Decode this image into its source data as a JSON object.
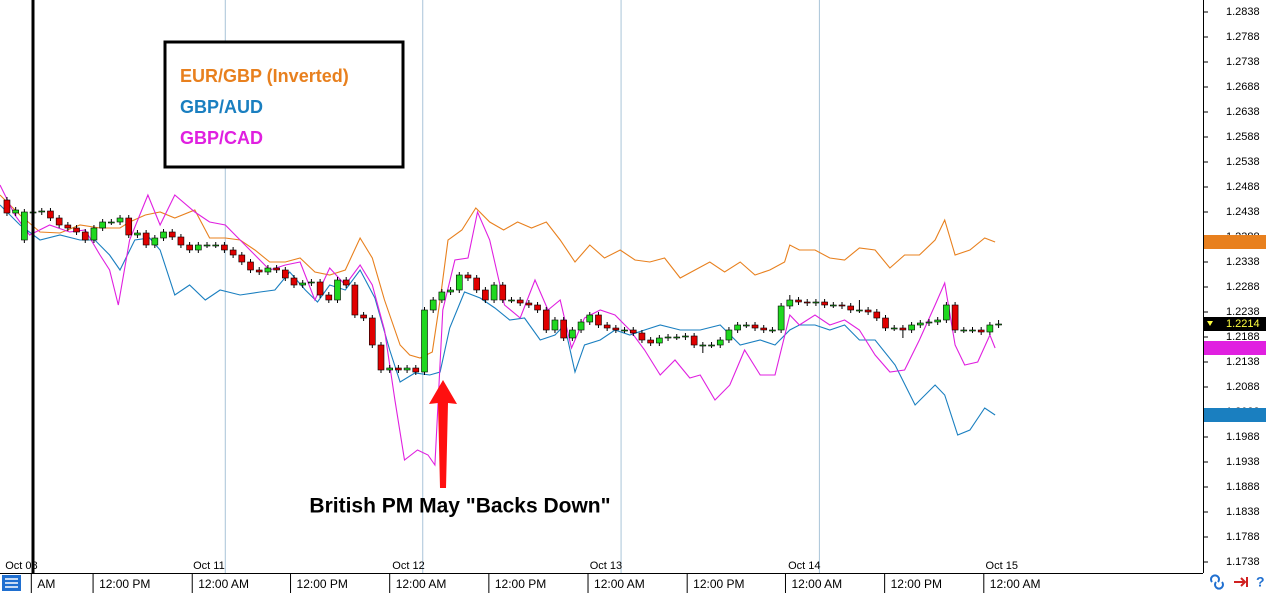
{
  "chart_data": {
    "type": "candlestick",
    "up_color": "#1fd81f",
    "down_color": "#e00000",
    "ohlc": [
      [
        1.2462,
        1.2468,
        1.243,
        1.2436
      ],
      [
        1.2436,
        1.2448,
        1.243,
        1.2442
      ],
      [
        1.2382,
        1.2444,
        1.2376,
        1.2438
      ],
      [
        1.2438,
        1.2444,
        1.2432,
        1.2438
      ],
      [
        1.2438,
        1.2446,
        1.2432,
        1.244
      ],
      [
        1.244,
        1.2446,
        1.242,
        1.2426
      ],
      [
        1.2426,
        1.2432,
        1.2406,
        1.2412
      ],
      [
        1.2412,
        1.2418,
        1.24,
        1.2406
      ],
      [
        1.2406,
        1.2412,
        1.2392,
        1.2398
      ],
      [
        1.2398,
        1.2404,
        1.2376,
        1.2382
      ],
      [
        1.2382,
        1.2412,
        1.2376,
        1.2406
      ],
      [
        1.2406,
        1.2424,
        1.24,
        1.2418
      ],
      [
        1.2418,
        1.2424,
        1.2412,
        1.2418
      ],
      [
        1.2418,
        1.2432,
        1.2412,
        1.2426
      ],
      [
        1.2426,
        1.2432,
        1.2386,
        1.2392
      ],
      [
        1.2392,
        1.2402,
        1.2386,
        1.2396
      ],
      [
        1.2396,
        1.2402,
        1.2366,
        1.2372
      ],
      [
        1.2372,
        1.2392,
        1.2366,
        1.2386
      ],
      [
        1.2386,
        1.2404,
        1.238,
        1.2398
      ],
      [
        1.2398,
        1.2404,
        1.2382,
        1.2388
      ],
      [
        1.2388,
        1.2394,
        1.2366,
        1.2372
      ],
      [
        1.2372,
        1.2378,
        1.2356,
        1.2362
      ],
      [
        1.2362,
        1.2378,
        1.2356,
        1.2372
      ],
      [
        1.2372,
        1.2378,
        1.2366,
        1.2372
      ],
      [
        1.2372,
        1.2378,
        1.2366,
        1.2372
      ],
      [
        1.2372,
        1.2378,
        1.2356,
        1.2362
      ],
      [
        1.2362,
        1.2368,
        1.2346,
        1.2352
      ],
      [
        1.2352,
        1.2358,
        1.2332,
        1.2338
      ],
      [
        1.2338,
        1.2344,
        1.2316,
        1.2322
      ],
      [
        1.2322,
        1.2328,
        1.2312,
        1.2318
      ],
      [
        1.2318,
        1.2332,
        1.2312,
        1.2326
      ],
      [
        1.2326,
        1.2332,
        1.2316,
        1.2322
      ],
      [
        1.2322,
        1.2328,
        1.23,
        1.2306
      ],
      [
        1.2306,
        1.2312,
        1.2286,
        1.2292
      ],
      [
        1.2292,
        1.2302,
        1.2286,
        1.2296
      ],
      [
        1.2296,
        1.2304,
        1.229,
        1.2298
      ],
      [
        1.2298,
        1.2304,
        1.2266,
        1.2272
      ],
      [
        1.2272,
        1.2278,
        1.2256,
        1.2262
      ],
      [
        1.2262,
        1.2308,
        1.2256,
        1.2302
      ],
      [
        1.2302,
        1.2308,
        1.2286,
        1.2292
      ],
      [
        1.2292,
        1.2298,
        1.2226,
        1.2232
      ],
      [
        1.2232,
        1.2238,
        1.222,
        1.2226
      ],
      [
        1.2226,
        1.2232,
        1.2166,
        1.2172
      ],
      [
        1.2172,
        1.2178,
        1.2116,
        1.2122
      ],
      [
        1.2122,
        1.2132,
        1.2116,
        1.2126
      ],
      [
        1.2126,
        1.2132,
        1.2116,
        1.2122
      ],
      [
        1.2122,
        1.2132,
        1.2116,
        1.2126
      ],
      [
        1.2126,
        1.2132,
        1.2112,
        1.2118
      ],
      [
        1.2118,
        1.2248,
        1.2112,
        1.2242
      ],
      [
        1.2242,
        1.2268,
        1.2236,
        1.2262
      ],
      [
        1.2262,
        1.2284,
        1.2256,
        1.2278
      ],
      [
        1.2278,
        1.2288,
        1.2272,
        1.2282
      ],
      [
        1.2282,
        1.2318,
        1.2276,
        1.2312
      ],
      [
        1.2312,
        1.2318,
        1.23,
        1.2306
      ],
      [
        1.2306,
        1.2312,
        1.2276,
        1.2282
      ],
      [
        1.2282,
        1.2288,
        1.2256,
        1.2262
      ],
      [
        1.2262,
        1.2298,
        1.2256,
        1.2292
      ],
      [
        1.2292,
        1.2298,
        1.2256,
        1.2262
      ],
      [
        1.2262,
        1.2268,
        1.2256,
        1.2262
      ],
      [
        1.2262,
        1.2268,
        1.225,
        1.2256
      ],
      [
        1.2256,
        1.2262,
        1.2246,
        1.2252
      ],
      [
        1.2252,
        1.2258,
        1.2236,
        1.2242
      ],
      [
        1.2242,
        1.2248,
        1.2196,
        1.2202
      ],
      [
        1.2202,
        1.2228,
        1.2196,
        1.2222
      ],
      [
        1.2222,
        1.2228,
        1.218,
        1.2186
      ],
      [
        1.2186,
        1.2208,
        1.218,
        1.2202
      ],
      [
        1.2202,
        1.2224,
        1.2196,
        1.2218
      ],
      [
        1.2218,
        1.2238,
        1.2212,
        1.2232
      ],
      [
        1.2232,
        1.2238,
        1.2206,
        1.2212
      ],
      [
        1.2212,
        1.2218,
        1.22,
        1.2206
      ],
      [
        1.2206,
        1.2212,
        1.2196,
        1.2202
      ],
      [
        1.2202,
        1.2208,
        1.2196,
        1.2202
      ],
      [
        1.2202,
        1.2208,
        1.219,
        1.2196
      ],
      [
        1.2196,
        1.2202,
        1.2176,
        1.2182
      ],
      [
        1.2182,
        1.2188,
        1.217,
        1.2176
      ],
      [
        1.2176,
        1.2192,
        1.217,
        1.2186
      ],
      [
        1.2186,
        1.2194,
        1.218,
        1.2188
      ],
      [
        1.2188,
        1.2194,
        1.2182,
        1.2188
      ],
      [
        1.2188,
        1.2196,
        1.2182,
        1.219
      ],
      [
        1.219,
        1.2196,
        1.2166,
        1.2172
      ],
      [
        1.2172,
        1.2178,
        1.2156,
        1.2172
      ],
      [
        1.2172,
        1.2178,
        1.2166,
        1.2172
      ],
      [
        1.2172,
        1.2188,
        1.2166,
        1.2182
      ],
      [
        1.2182,
        1.2208,
        1.2176,
        1.2202
      ],
      [
        1.2202,
        1.2218,
        1.2196,
        1.2212
      ],
      [
        1.2212,
        1.2218,
        1.2206,
        1.2212
      ],
      [
        1.2212,
        1.2218,
        1.22,
        1.2206
      ],
      [
        1.2206,
        1.2212,
        1.2196,
        1.2202
      ],
      [
        1.2202,
        1.2208,
        1.2196,
        1.2202
      ],
      [
        1.2202,
        1.2256,
        1.2196,
        1.225
      ],
      [
        1.225,
        1.2272,
        1.2244,
        1.2262
      ],
      [
        1.2262,
        1.2268,
        1.2252,
        1.2258
      ],
      [
        1.2258,
        1.2264,
        1.225,
        1.2256
      ],
      [
        1.2256,
        1.2264,
        1.225,
        1.2258
      ],
      [
        1.2258,
        1.2264,
        1.2246,
        1.2252
      ],
      [
        1.2252,
        1.2258,
        1.2246,
        1.2252
      ],
      [
        1.2252,
        1.2258,
        1.2244,
        1.225
      ],
      [
        1.225,
        1.2256,
        1.2236,
        1.2242
      ],
      [
        1.2242,
        1.2262,
        1.2236,
        1.2242
      ],
      [
        1.2242,
        1.2248,
        1.2232,
        1.2238
      ],
      [
        1.2238,
        1.2244,
        1.222,
        1.2226
      ],
      [
        1.2226,
        1.2232,
        1.22,
        1.2206
      ],
      [
        1.2206,
        1.2212,
        1.22,
        1.2206
      ],
      [
        1.2206,
        1.2212,
        1.2186,
        1.2202
      ],
      [
        1.2202,
        1.2218,
        1.2196,
        1.2212
      ],
      [
        1.2212,
        1.2222,
        1.2206,
        1.2216
      ],
      [
        1.2216,
        1.2224,
        1.221,
        1.2218
      ],
      [
        1.2218,
        1.2228,
        1.2212,
        1.2222
      ],
      [
        1.2222,
        1.2258,
        1.2216,
        1.2252
      ],
      [
        1.2252,
        1.2258,
        1.2196,
        1.2202
      ],
      [
        1.2202,
        1.2208,
        1.2196,
        1.2202
      ],
      [
        1.2202,
        1.2208,
        1.2196,
        1.2202
      ],
      [
        1.2202,
        1.2208,
        1.2192,
        1.2198
      ],
      [
        1.2198,
        1.2218,
        1.2192,
        1.2212
      ],
      [
        1.2212,
        1.2222,
        1.2206,
        1.2214
      ]
    ],
    "overlays": [
      {
        "name": "EUR/GBP (Inverted)",
        "color": "#e8801e",
        "x": [
          -0.8,
          1.5,
          3.8,
          6.1,
          8.4,
          10.7,
          13.0,
          14.1,
          15.9,
          17.6,
          19.3,
          21.6,
          23.3,
          25.1,
          26.8,
          28.5,
          30.2,
          32.0,
          33.7,
          35.4,
          37.1,
          38.9,
          40.6,
          42.0,
          43.4,
          45.2,
          46.3,
          47.5,
          48.9,
          49.8,
          50.7,
          52.3,
          53.9,
          55.5,
          57.1,
          58.7,
          60.3,
          62.0,
          63.6,
          65.3,
          67.0,
          68.7,
          70.5,
          72.2,
          73.9,
          75.6,
          77.4,
          79.1,
          80.8,
          82.5,
          84.3,
          86.0,
          87.7,
          89.4,
          90.0,
          91.1,
          92.9,
          94.6,
          96.3,
          98.0,
          99.8,
          101.5,
          103.2,
          104.9,
          106.7,
          107.8,
          109.0,
          110.7,
          112.4,
          113.6
        ],
        "values": [
          1.2472,
          1.2432,
          1.2398,
          1.2396,
          1.2412,
          1.2406,
          1.2406,
          1.2418,
          1.2432,
          1.2438,
          1.2426,
          1.2442,
          1.2386,
          1.2386,
          1.2382,
          1.2362,
          1.2338,
          1.2338,
          1.2346,
          1.2318,
          1.2312,
          1.2322,
          1.2386,
          1.2346,
          1.2262,
          1.2172,
          1.2152,
          1.2146,
          1.2158,
          1.2262,
          1.2382,
          1.2402,
          1.2446,
          1.2418,
          1.2402,
          1.2418,
          1.2406,
          1.2418,
          1.2382,
          1.2338,
          1.2372,
          1.2346,
          1.2362,
          1.2342,
          1.2338,
          1.2346,
          1.2306,
          1.2322,
          1.2338,
          1.2318,
          1.2338,
          1.2312,
          1.2322,
          1.2338,
          1.2372,
          1.2362,
          1.2362,
          1.2346,
          1.2342,
          1.2366,
          1.2362,
          1.2326,
          1.2352,
          1.2352,
          1.2382,
          1.2422,
          1.2352,
          1.2362,
          1.2386,
          1.2378
        ]
      },
      {
        "name": "GBP/AUD",
        "color": "#1a7fc0",
        "x": [
          -0.8,
          1.5,
          3.8,
          6.1,
          8.4,
          10.1,
          11.8,
          13.0,
          14.7,
          16.4,
          17.6,
          19.3,
          21.0,
          22.8,
          24.5,
          26.8,
          29.1,
          30.8,
          32.5,
          34.3,
          35.7,
          37.1,
          38.9,
          40.6,
          42.3,
          44.0,
          45.2,
          46.9,
          48.6,
          49.8,
          50.9,
          52.6,
          54.4,
          56.1,
          57.8,
          59.5,
          61.3,
          63.0,
          64.1,
          65.3,
          66.4,
          68.2,
          69.9,
          71.6,
          73.3,
          75.1,
          77.4,
          79.7,
          82.0,
          84.3,
          86.6,
          88.3,
          90.0,
          91.1,
          92.9,
          94.6,
          96.3,
          98.0,
          99.8,
          102.1,
          104.4,
          106.7,
          107.8,
          109.3,
          110.7,
          112.4,
          113.6
        ],
        "values": [
          1.2452,
          1.2412,
          1.2382,
          1.2392,
          1.2382,
          1.2382,
          1.2352,
          1.2322,
          1.2382,
          1.2386,
          1.2362,
          1.2272,
          1.2292,
          1.2262,
          1.2282,
          1.2272,
          1.2278,
          1.2282,
          1.2318,
          1.2282,
          1.2258,
          1.2292,
          1.2282,
          1.2322,
          1.2266,
          1.2162,
          1.2098,
          1.2116,
          1.2112,
          1.2118,
          1.2206,
          1.2278,
          1.2266,
          1.2246,
          1.2222,
          1.2226,
          1.2182,
          1.2192,
          1.2212,
          1.2118,
          1.2172,
          1.2182,
          1.2202,
          1.2192,
          1.2202,
          1.2212,
          1.2202,
          1.2202,
          1.2212,
          1.2172,
          1.2182,
          1.2172,
          1.2202,
          1.2212,
          1.2212,
          1.2202,
          1.2212,
          1.2182,
          1.2182,
          1.2132,
          1.2052,
          1.2092,
          1.2072,
          1.1992,
          1.2002,
          1.2046,
          1.2032
        ]
      },
      {
        "name": "GBP/CAD",
        "color": "#e020e0",
        "x": [
          -0.8,
          0.9,
          2.6,
          4.9,
          7.2,
          9.0,
          10.7,
          11.8,
          12.8,
          14.1,
          16.2,
          17.6,
          19.3,
          21.6,
          23.3,
          25.1,
          26.8,
          28.5,
          30.2,
          32.0,
          33.7,
          35.4,
          37.1,
          38.9,
          40.6,
          42.0,
          43.4,
          44.6,
          45.7,
          47.2,
          48.4,
          49.2,
          50.1,
          51.5,
          53.0,
          54.1,
          55.5,
          57.2,
          59.0,
          60.7,
          62.2,
          63.6,
          64.9,
          66.4,
          68.2,
          69.9,
          71.6,
          73.3,
          75.1,
          76.8,
          78.5,
          79.7,
          81.4,
          83.1,
          84.8,
          86.6,
          88.3,
          90.0,
          91.1,
          92.9,
          94.6,
          96.3,
          98.0,
          99.8,
          101.5,
          103.2,
          104.9,
          106.7,
          107.8,
          109.0,
          110.1,
          111.6,
          113.0,
          113.6
        ],
        "values": [
          1.2492,
          1.2432,
          1.2392,
          1.2412,
          1.2398,
          1.2402,
          1.2352,
          1.2322,
          1.2252,
          1.2382,
          1.2472,
          1.2412,
          1.2472,
          1.2438,
          1.2418,
          1.2412,
          1.2382,
          1.2352,
          1.2322,
          1.2332,
          1.2338,
          1.2262,
          1.2326,
          1.2292,
          1.2332,
          1.2292,
          1.2202,
          1.2062,
          1.1942,
          1.1962,
          1.1952,
          1.1932,
          1.2242,
          1.2342,
          1.2346,
          1.2438,
          1.2382,
          1.2252,
          1.2226,
          1.2302,
          1.2242,
          1.2262,
          1.2166,
          1.2226,
          1.2242,
          1.2232,
          1.2202,
          1.2162,
          1.2112,
          1.2142,
          1.2106,
          1.2112,
          1.2062,
          1.2092,
          1.2162,
          1.2112,
          1.2112,
          1.2232,
          1.2212,
          1.2232,
          1.2212,
          1.2222,
          1.2202,
          1.2152,
          1.2118,
          1.2122,
          1.2182,
          1.2252,
          1.2296,
          1.2172,
          1.2132,
          1.2138,
          1.2192,
          1.2166
        ]
      }
    ],
    "xlim": [
      -0.8,
      137.5
    ],
    "ylim": [
      1.1716,
      1.2862
    ],
    "yticks": [
      1.2838,
      1.2788,
      1.2738,
      1.2688,
      1.2638,
      1.2588,
      1.2538,
      1.2488,
      1.2438,
      1.2388,
      1.2338,
      1.2288,
      1.2238,
      1.2188,
      1.2138,
      1.2088,
      1.2038,
      1.1988,
      1.1938,
      1.1888,
      1.1838,
      1.1788,
      1.1738
    ],
    "xticks": [
      {
        "value": 2.8,
        "label": "AM"
      },
      {
        "value": 9.9,
        "label": "12:00 PM"
      },
      {
        "value": 21.3,
        "label": "12:00 AM"
      },
      {
        "value": 32.6,
        "label": "12:00 PM"
      },
      {
        "value": 44.0,
        "label": "12:00 AM"
      },
      {
        "value": 55.4,
        "label": "12:00 PM"
      },
      {
        "value": 66.8,
        "label": "12:00 AM"
      },
      {
        "value": 78.2,
        "label": "12:00 PM"
      },
      {
        "value": 89.5,
        "label": "12:00 AM"
      },
      {
        "value": 100.9,
        "label": "12:00 PM"
      },
      {
        "value": 112.3,
        "label": "12:00 AM"
      }
    ],
    "date_ticks": [
      {
        "value": -0.2,
        "label": "Oct 08"
      },
      {
        "value": 21.4,
        "label": "Oct 11"
      },
      {
        "value": 44.3,
        "label": "Oct 12"
      },
      {
        "value": 67.0,
        "label": "Oct 13"
      },
      {
        "value": 89.8,
        "label": "Oct 14"
      },
      {
        "value": 112.5,
        "label": "Oct 15"
      }
    ],
    "xgrid": [
      25.1,
      47.8,
      70.6,
      93.4
    ],
    "annotation": "British PM May \"Backs Down\""
  }
}
